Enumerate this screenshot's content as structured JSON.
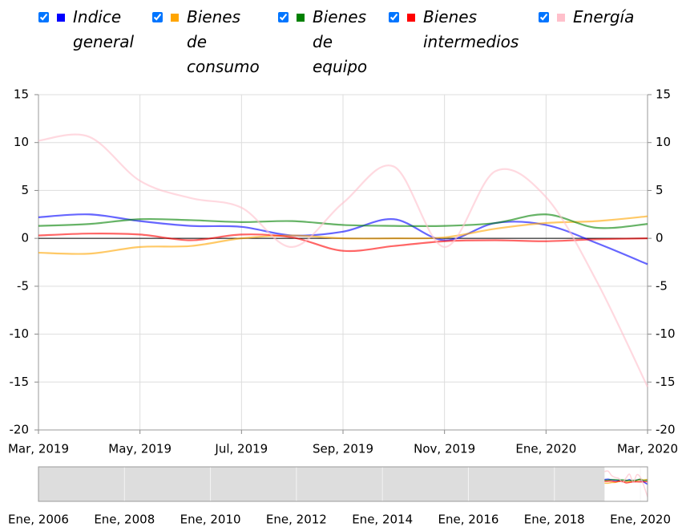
{
  "chart_data": {
    "type": "line",
    "x": [
      "2019-03",
      "2019-04",
      "2019-05",
      "2019-06",
      "2019-07",
      "2019-08",
      "2019-09",
      "2019-10",
      "2019-11",
      "2019-12",
      "2020-01",
      "2020-02",
      "2020-03"
    ],
    "series": [
      {
        "name": "Indice general",
        "color": "#0000ff",
        "values": [
          2.2,
          2.5,
          1.8,
          1.3,
          1.2,
          0.3,
          0.7,
          2.0,
          -0.2,
          1.6,
          1.4,
          -0.5,
          -2.7
        ]
      },
      {
        "name": "Bienes de consumo",
        "color": "#ffa500",
        "values": [
          -1.5,
          -1.6,
          -0.9,
          -0.8,
          0.0,
          0.3,
          0.0,
          0.0,
          0.1,
          1.0,
          1.6,
          1.8,
          2.3
        ]
      },
      {
        "name": "Bienes de equipo",
        "color": "#008000",
        "values": [
          1.3,
          1.5,
          2.0,
          1.9,
          1.7,
          1.8,
          1.4,
          1.3,
          1.3,
          1.6,
          2.5,
          1.1,
          1.5
        ]
      },
      {
        "name": "Bienes intermedios",
        "color": "#ff0000",
        "values": [
          0.3,
          0.5,
          0.4,
          -0.2,
          0.4,
          0.1,
          -1.3,
          -0.8,
          -0.3,
          -0.2,
          -0.3,
          -0.1,
          0.0
        ]
      },
      {
        "name": "Energía",
        "color": "#ffc0cb",
        "values": [
          10.2,
          10.6,
          6.0,
          4.2,
          3.2,
          -0.9,
          3.7,
          7.5,
          -0.9,
          7.0,
          4.3,
          -4.5,
          -15.5
        ]
      }
    ],
    "xlim": [
      "2019-03",
      "2020-03"
    ],
    "xticks": [
      {
        "value": "2019-03",
        "label": "Mar, 2019"
      },
      {
        "value": "2019-05",
        "label": "May, 2019"
      },
      {
        "value": "2019-07",
        "label": "Jul, 2019"
      },
      {
        "value": "2019-09",
        "label": "Sep, 2019"
      },
      {
        "value": "2019-11",
        "label": "Nov, 2019"
      },
      {
        "value": "2020-01",
        "label": "Ene, 2020"
      },
      {
        "value": "2020-03",
        "label": "Mar, 2020"
      }
    ],
    "ylim": [
      -20,
      15
    ],
    "yticks": [
      -20,
      -15,
      -10,
      -5,
      0,
      5,
      10,
      15
    ],
    "y2lim": [
      -20,
      15
    ],
    "y2ticks": [
      -20,
      -15,
      -10,
      -5,
      0,
      5,
      10,
      15
    ],
    "grid": true,
    "range_selector": {
      "xlim": [
        "2006-01",
        "2020-03"
      ],
      "xticks": [
        {
          "value": "2006-01",
          "label": "Ene, 2006"
        },
        {
          "value": "2008-01",
          "label": "Ene, 2008"
        },
        {
          "value": "2010-01",
          "label": "Ene, 2010"
        },
        {
          "value": "2012-01",
          "label": "Ene, 2012"
        },
        {
          "value": "2014-01",
          "label": "Ene, 2014"
        },
        {
          "value": "2016-01",
          "label": "Ene, 2016"
        },
        {
          "value": "2018-01",
          "label": "Ene, 2018"
        },
        {
          "value": "2020-01",
          "label": "Ene, 2020"
        }
      ]
    }
  }
}
